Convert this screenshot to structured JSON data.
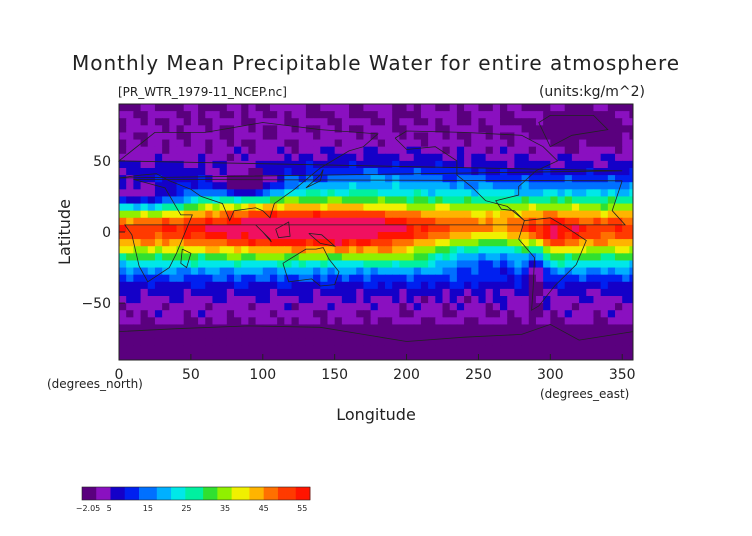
{
  "chart_data": {
    "type": "heatmap",
    "title": "Monthly Mean Precipitable Water for entire atmosphere",
    "source_label": "[PR_WTR_1979-11_NCEP.nc]",
    "units_label": "(units:kg/m^2)",
    "xlabel": "Longitude",
    "ylabel": "Latitude",
    "x_units": "(degrees_east)",
    "y_units": "(degrees_north)",
    "xlim": [
      0,
      357.5
    ],
    "ylim": [
      -90,
      90
    ],
    "x_ticks": [
      0,
      50,
      100,
      150,
      200,
      250,
      300,
      350
    ],
    "y_ticks": [
      50,
      0,
      -50
    ],
    "x_tick_labels": [
      "0",
      "50",
      "100",
      "150",
      "200",
      "250",
      "300",
      "350"
    ],
    "y_tick_labels": [
      "50",
      "0",
      "−50"
    ],
    "colorbar": {
      "tick_labels": [
        "−2.05",
        "5",
        "15",
        "25",
        "35",
        "45",
        "55"
      ],
      "tick_values": [
        -2.05,
        5,
        15,
        25,
        35,
        45,
        55
      ],
      "min": -2.05,
      "max": 57
    },
    "colors": {
      "low": "#6a0096",
      "mid_low": "#0050ff",
      "mid": "#00e0c0",
      "mid_high": "#f0f000",
      "high": "#ff2000"
    }
  }
}
